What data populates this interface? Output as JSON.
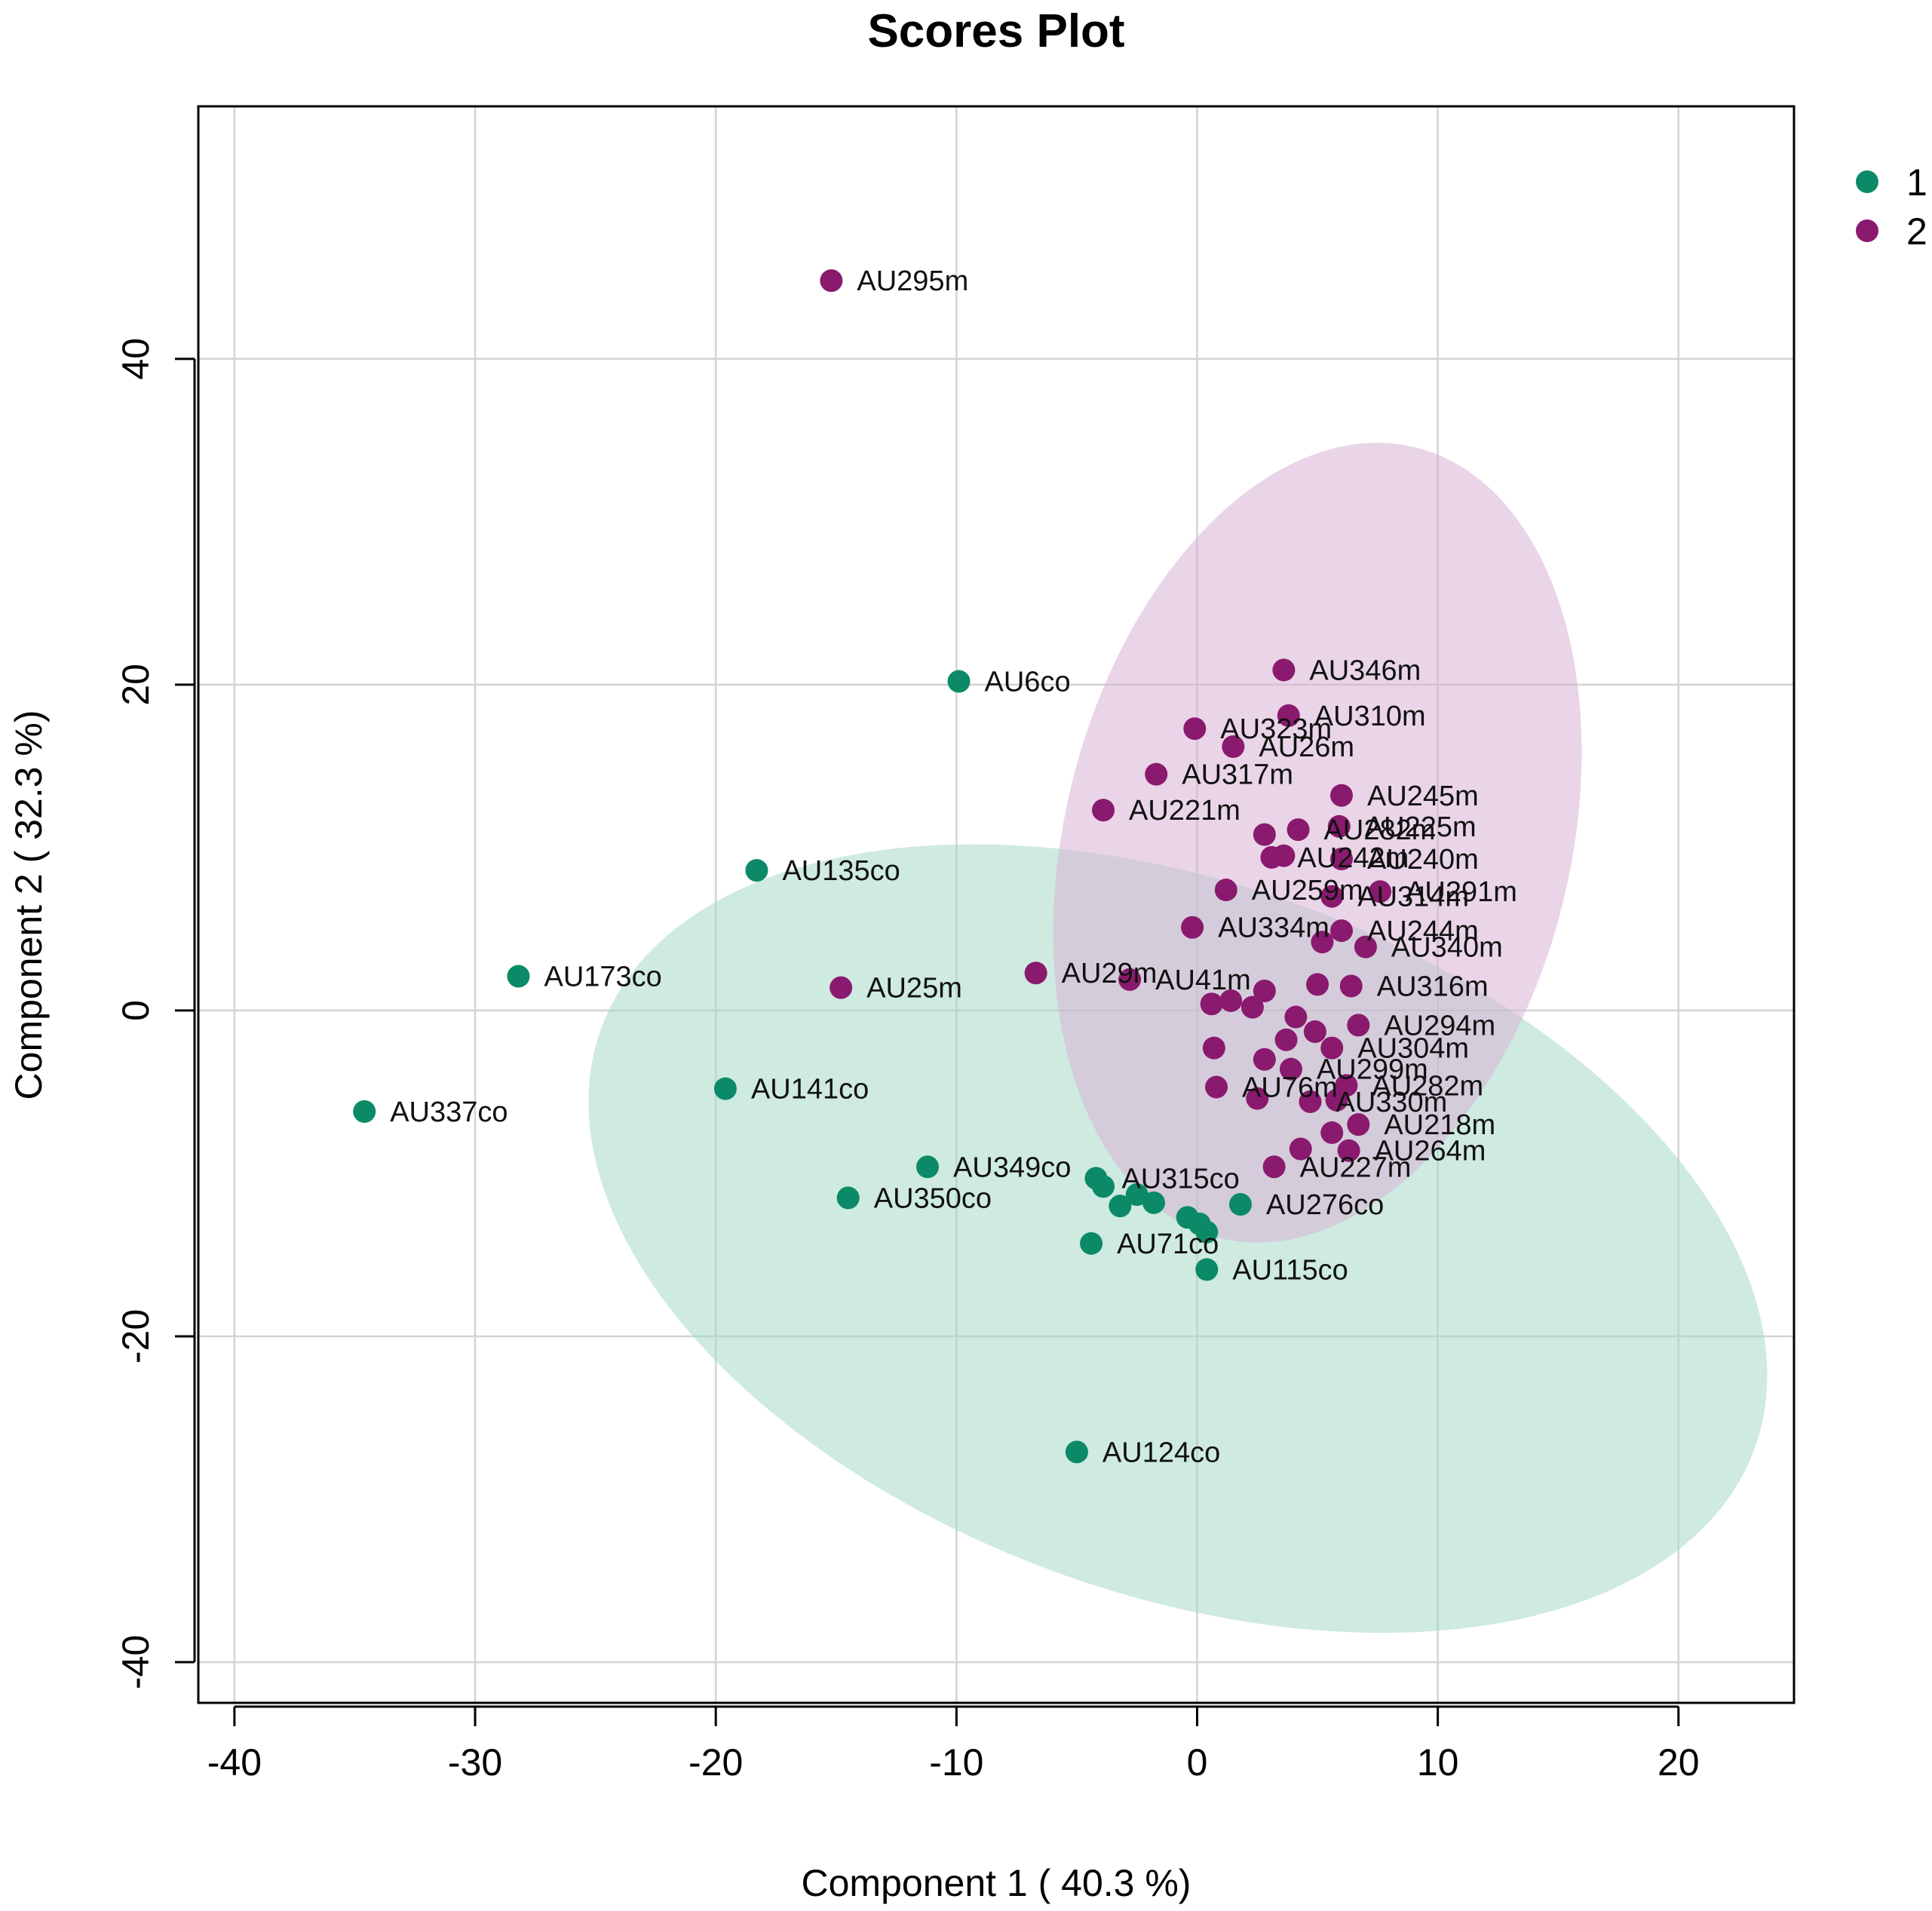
{
  "chart_data": {
    "type": "scatter",
    "title": "Scores Plot",
    "xlabel": "Component 1 ( 40.3 %)",
    "ylabel": "Component 2 ( 32.3 %)",
    "xlim": [
      -41.5,
      24.8
    ],
    "ylim": [
      -42.5,
      55.5
    ],
    "xticks": [
      -40,
      -30,
      -20,
      -10,
      0,
      10,
      20
    ],
    "yticks": [
      -40,
      -20,
      0,
      20,
      40
    ],
    "grid": true,
    "legend": {
      "position": "outside-top-right",
      "entries": [
        "1",
        "2"
      ]
    },
    "colors": {
      "1": "#0c8a68",
      "2": "#8a1a6e",
      "ellipse1": "#a6d8c8",
      "ellipse2": "#d9b3d6"
    },
    "ellipses": [
      {
        "group": "1",
        "center": [
          -0.8,
          -14
        ],
        "rx": 25.5,
        "ry": 21.8,
        "angle_deg": 20
      },
      {
        "group": "2",
        "center": [
          5,
          10.3
        ],
        "rx": 10.5,
        "ry": 25,
        "angle_deg": 14
      }
    ],
    "series": [
      {
        "name": "1",
        "points": [
          {
            "label": "AU6co",
            "x": -9.9,
            "y": 20.2
          },
          {
            "label": "AU135co",
            "x": -18.3,
            "y": 8.6
          },
          {
            "label": "AU173co",
            "x": -28.2,
            "y": 2.1
          },
          {
            "label": "AU141co",
            "x": -19.6,
            "y": -4.8
          },
          {
            "label": "AU337co",
            "x": -34.6,
            "y": -6.2
          },
          {
            "label": "AU349co",
            "x": -11.2,
            "y": -9.6
          },
          {
            "label": "AU350co",
            "x": -14.5,
            "y": -11.5
          },
          {
            "label": "AU315co",
            "x": -4.2,
            "y": -10.3
          },
          {
            "label": "",
            "x": -3.9,
            "y": -10.8
          },
          {
            "label": "",
            "x": -2.5,
            "y": -11.3
          },
          {
            "label": "",
            "x": -3.2,
            "y": -12.0
          },
          {
            "label": "",
            "x": -1.8,
            "y": -11.8
          },
          {
            "label": "",
            "x": -0.4,
            "y": -12.7
          },
          {
            "label": "",
            "x": 0.1,
            "y": -13.1
          },
          {
            "label": "",
            "x": 0.4,
            "y": -13.6
          },
          {
            "label": "AU276co",
            "x": 1.8,
            "y": -11.9
          },
          {
            "label": "AU71co",
            "x": -4.4,
            "y": -14.3
          },
          {
            "label": "AU115co",
            "x": 0.4,
            "y": -15.9
          },
          {
            "label": "AU124co",
            "x": -5.0,
            "y": -27.1
          }
        ]
      },
      {
        "name": "2",
        "points": [
          {
            "label": "AU295m",
            "x": -15.2,
            "y": 44.8
          },
          {
            "label": "AU346m",
            "x": 3.6,
            "y": 20.9
          },
          {
            "label": "AU310m",
            "x": 3.8,
            "y": 18.1
          },
          {
            "label": "AU323m",
            "x": -0.1,
            "y": 17.3
          },
          {
            "label": "AU26m",
            "x": 1.5,
            "y": 16.2
          },
          {
            "label": "AU317m",
            "x": -1.7,
            "y": 14.5
          },
          {
            "label": "AU245m",
            "x": 6.0,
            "y": 13.2
          },
          {
            "label": "AU221m",
            "x": -3.9,
            "y": 12.3
          },
          {
            "label": "AU225m",
            "x": 5.9,
            "y": 11.3
          },
          {
            "label": "AU282m",
            "x": 4.2,
            "y": 11.1
          },
          {
            "label": "",
            "x": 2.8,
            "y": 10.8
          },
          {
            "label": "AU240m",
            "x": 6.0,
            "y": 9.3
          },
          {
            "label": "AU242m",
            "x": 3.1,
            "y": 9.4
          },
          {
            "label": "",
            "x": 3.6,
            "y": 9.5
          },
          {
            "label": "AU259m",
            "x": 1.2,
            "y": 7.4
          },
          {
            "label": "AU314m",
            "x": 5.6,
            "y": 7.0
          },
          {
            "label": "AU291m",
            "x": 7.6,
            "y": 7.3
          },
          {
            "label": "AU334m",
            "x": -0.2,
            "y": 5.1
          },
          {
            "label": "AU244m",
            "x": 6.0,
            "y": 4.9
          },
          {
            "label": "AU340m",
            "x": 7.0,
            "y": 3.9
          },
          {
            "label": "",
            "x": 5.2,
            "y": 4.2
          },
          {
            "label": "AU29m",
            "x": -6.7,
            "y": 2.3
          },
          {
            "label": "AU41m",
            "x": -2.8,
            "y": 1.9
          },
          {
            "label": "AU25m",
            "x": -14.8,
            "y": 1.4
          },
          {
            "label": "AU316m",
            "x": 6.4,
            "y": 1.5
          },
          {
            "label": "",
            "x": 5.0,
            "y": 1.6
          },
          {
            "label": "",
            "x": 2.8,
            "y": 1.2
          },
          {
            "label": "",
            "x": 1.4,
            "y": 0.6
          },
          {
            "label": "",
            "x": 0.6,
            "y": 0.4
          },
          {
            "label": "",
            "x": 2.3,
            "y": 0.2
          },
          {
            "label": "",
            "x": 4.1,
            "y": -0.4
          },
          {
            "label": "AU294m",
            "x": 6.7,
            "y": -0.9
          },
          {
            "label": "",
            "x": 4.9,
            "y": -1.3
          },
          {
            "label": "",
            "x": 3.7,
            "y": -1.8
          },
          {
            "label": "AU304m",
            "x": 5.6,
            "y": -2.3
          },
          {
            "label": "",
            "x": 0.7,
            "y": -2.3
          },
          {
            "label": "",
            "x": 2.8,
            "y": -3.0
          },
          {
            "label": "AU299m",
            "x": 3.9,
            "y": -3.6
          },
          {
            "label": "AU282m",
            "x": 6.2,
            "y": -4.6
          },
          {
            "label": "AU76m",
            "x": 0.8,
            "y": -4.7
          },
          {
            "label": "",
            "x": 2.5,
            "y": -5.4
          },
          {
            "label": "AU330m",
            "x": 4.7,
            "y": -5.6
          },
          {
            "label": "",
            "x": 5.8,
            "y": -5.5
          },
          {
            "label": "AU218m",
            "x": 6.7,
            "y": -7.0
          },
          {
            "label": "",
            "x": 5.6,
            "y": -7.5
          },
          {
            "label": "AU264m",
            "x": 6.3,
            "y": -8.6
          },
          {
            "label": "",
            "x": 4.3,
            "y": -8.5
          },
          {
            "label": "AU227m",
            "x": 3.2,
            "y": -9.6
          }
        ]
      }
    ]
  }
}
